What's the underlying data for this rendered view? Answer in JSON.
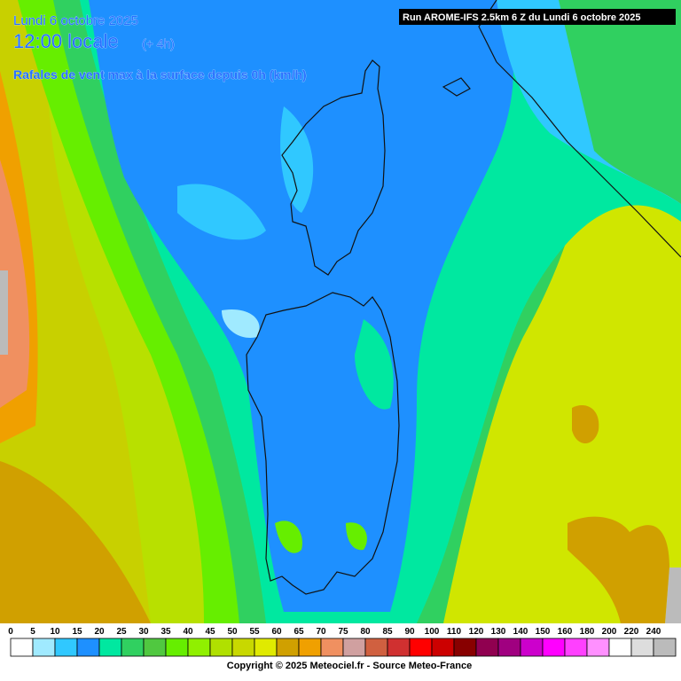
{
  "header": {
    "date": "Lundi 6 octobre 2025",
    "time": "12:00 locale",
    "offset": "(+ 4h)",
    "subtitle": "Rafales de vent max à la surface depuis 0h (km/h)",
    "run": "Run AROME-IFS 2.5km 6 Z du Lundi 6 octobre 2025"
  },
  "legend": {
    "items": [
      {
        "label": 0,
        "color": "#ffffff"
      },
      {
        "label": 5,
        "color": "#a0eaff"
      },
      {
        "label": 10,
        "color": "#30c8ff"
      },
      {
        "label": 15,
        "color": "#1e90ff"
      },
      {
        "label": 20,
        "color": "#00e8a0"
      },
      {
        "label": 25,
        "color": "#30d060"
      },
      {
        "label": 30,
        "color": "#50c840"
      },
      {
        "label": 35,
        "color": "#66ee00"
      },
      {
        "label": 40,
        "color": "#90f000"
      },
      {
        "label": 45,
        "color": "#b0e000"
      },
      {
        "label": 50,
        "color": "#c8d800"
      },
      {
        "label": 55,
        "color": "#e0ea00"
      },
      {
        "label": 60,
        "color": "#d0a000"
      },
      {
        "label": 65,
        "color": "#f0a000"
      },
      {
        "label": 70,
        "color": "#f09060"
      },
      {
        "label": 75,
        "color": "#d0a0a0"
      },
      {
        "label": 80,
        "color": "#d06040"
      },
      {
        "label": 85,
        "color": "#d03030"
      },
      {
        "label": 90,
        "color": "#ff0000"
      },
      {
        "label": 100,
        "color": "#cc0000"
      },
      {
        "label": 110,
        "color": "#880000"
      },
      {
        "label": 120,
        "color": "#900050"
      },
      {
        "label": 130,
        "color": "#a00080"
      },
      {
        "label": 140,
        "color": "#cc00cc"
      },
      {
        "label": 150,
        "color": "#ff00ff"
      },
      {
        "label": 160,
        "color": "#ff40ff"
      },
      {
        "label": 180,
        "color": "#ff90ff"
      },
      {
        "label": 200,
        "color": "#ffffff"
      },
      {
        "label": 220,
        "color": "#dddddd"
      },
      {
        "label": 240,
        "color": "#bbbbbb"
      }
    ]
  },
  "footer": {
    "copyright": "Copyright © 2025 Meteociel.fr - Source Meteo-France"
  }
}
